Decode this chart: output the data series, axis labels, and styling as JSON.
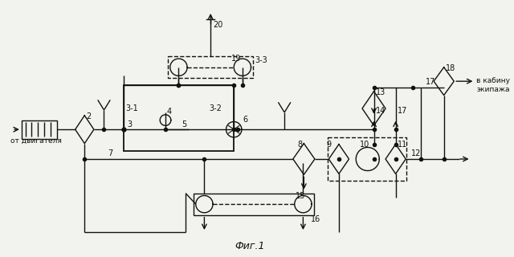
{
  "bg_color": "#f2f2ee",
  "line_color": "#111111",
  "fig_label": "Фиг.1",
  "caption_right": "в кабину\nэкипажа",
  "caption_left": "от двигателя"
}
